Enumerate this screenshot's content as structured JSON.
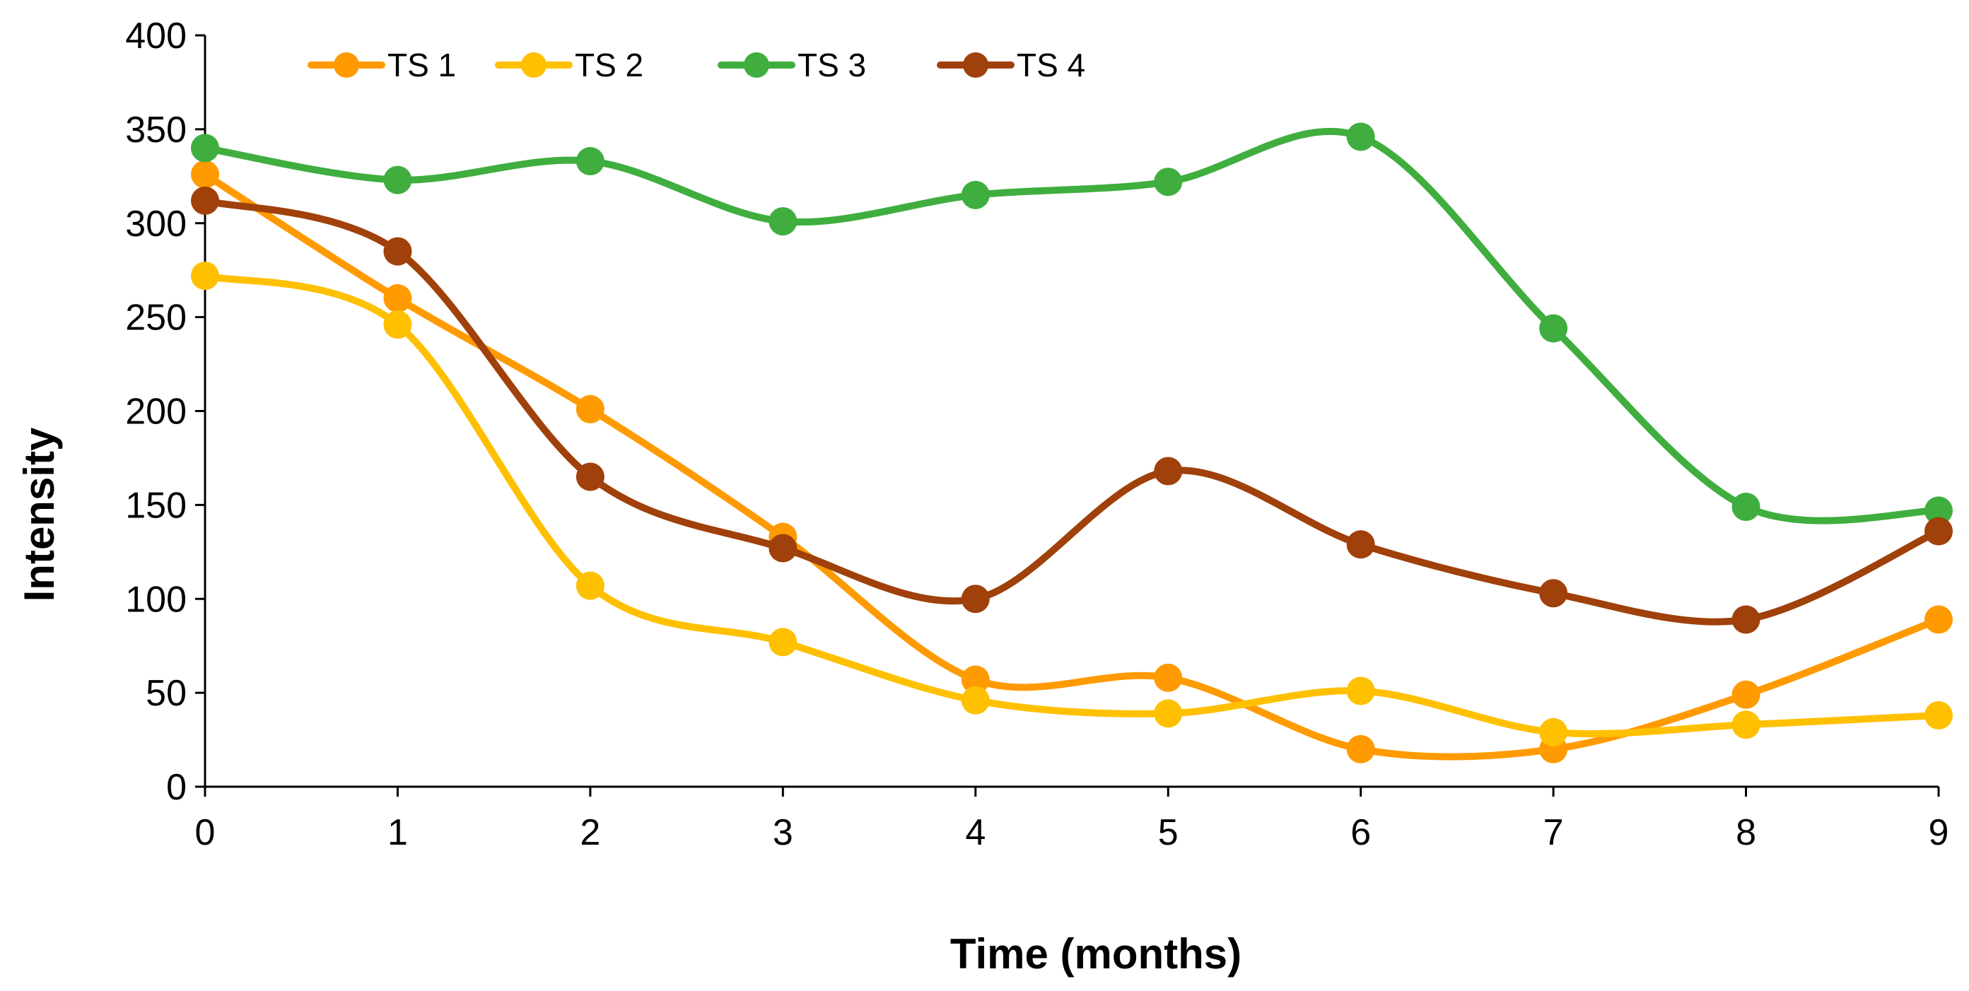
{
  "chart_data": {
    "type": "line",
    "smooth": true,
    "title": "",
    "xlabel": "Time (months)",
    "ylabel": "Intensity",
    "x": [
      0,
      1,
      2,
      3,
      4,
      5,
      6,
      7,
      8,
      9
    ],
    "xlim": [
      0,
      9
    ],
    "ylim": [
      0,
      400
    ],
    "yticks": [
      0,
      50,
      100,
      150,
      200,
      250,
      300,
      350,
      400
    ],
    "grid": false,
    "legend_position": "top-left",
    "series": [
      {
        "name": "TS 1",
        "color": "#FF9A00",
        "values": [
          326,
          260,
          201,
          133,
          57,
          58,
          20,
          20,
          49,
          89
        ]
      },
      {
        "name": "TS 2",
        "color": "#FFC000",
        "values": [
          272,
          246,
          107,
          77,
          46,
          39,
          51,
          29,
          33,
          38
        ]
      },
      {
        "name": "TS 3",
        "color": "#3FAE3F",
        "values": [
          340,
          323,
          333,
          301,
          315,
          322,
          346,
          244,
          149,
          147
        ]
      },
      {
        "name": "TS 4",
        "color": "#A0400A",
        "values": [
          312,
          285,
          165,
          127,
          100,
          168,
          129,
          103,
          89,
          136
        ]
      }
    ]
  }
}
